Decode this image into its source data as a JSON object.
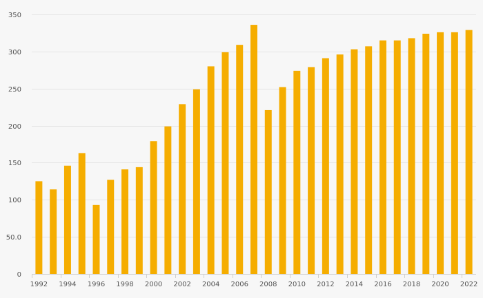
{
  "chart_data": {
    "type": "bar",
    "title": "",
    "xlabel": "",
    "ylabel": "",
    "ylim": [
      0,
      350
    ],
    "yticks": [
      "0",
      "50.0",
      "100",
      "150",
      "200",
      "250",
      "300",
      "350"
    ],
    "ytick_values": [
      0,
      50,
      100,
      150,
      200,
      250,
      300,
      350
    ],
    "xtick_labels": [
      "1992",
      "1994",
      "1996",
      "1998",
      "2000",
      "2002",
      "2004",
      "2006",
      "2008",
      "2010",
      "2012",
      "2014",
      "2016",
      "2018",
      "2020",
      "2022"
    ],
    "grid": true,
    "bar_color": "#F5AD00",
    "categories": [
      1992,
      1993,
      1994,
      1995,
      1996,
      1997,
      1998,
      1999,
      2000,
      2001,
      2002,
      2003,
      2004,
      2005,
      2006,
      2007,
      2008,
      2009,
      2010,
      2011,
      2012,
      2013,
      2014,
      2015,
      2016,
      2017,
      2018,
      2019,
      2020,
      2021,
      2022
    ],
    "values": [
      125,
      114,
      146,
      163,
      93,
      127,
      141,
      144,
      179,
      199,
      229,
      249,
      280,
      299,
      309,
      336,
      221,
      252,
      274,
      279,
      291,
      296,
      303,
      307,
      315,
      315,
      318,
      324,
      326,
      326,
      329
    ]
  }
}
